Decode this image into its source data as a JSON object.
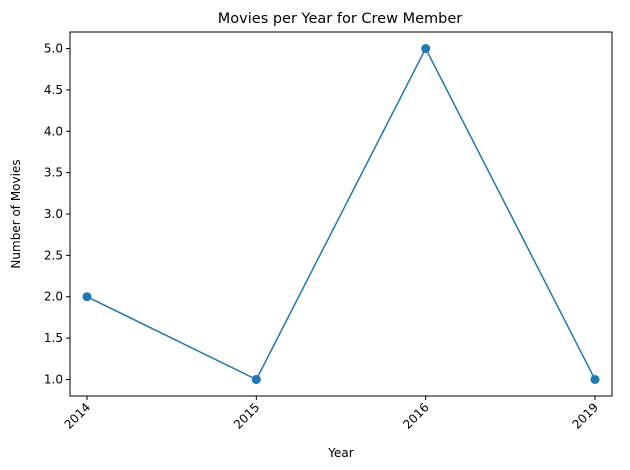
{
  "chart_data": {
    "type": "line",
    "title": "Movies per Year for Crew Member",
    "xlabel": "Year",
    "ylabel": "Number of Movies",
    "categories": [
      "2014",
      "2015",
      "2016",
      "2019"
    ],
    "series": [
      {
        "values": [
          2,
          1,
          5,
          1
        ]
      }
    ],
    "ylim": [
      0.8,
      5.2
    ],
    "yticks": [
      "1.0",
      "1.5",
      "2.0",
      "2.5",
      "3.0",
      "3.5",
      "4.0",
      "4.5",
      "5.0"
    ],
    "grid": false,
    "markers": true,
    "x_tick_rotation_deg": 45,
    "colors": {
      "line": "#1f77b4",
      "marker": "#1f77b4"
    }
  }
}
